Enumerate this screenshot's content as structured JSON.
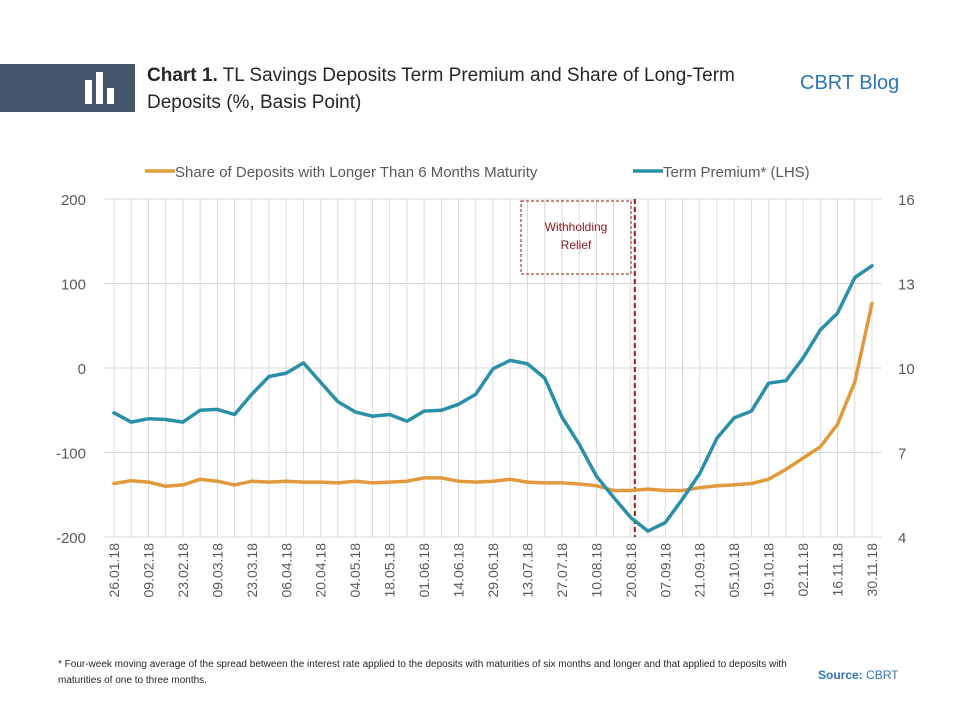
{
  "header": {
    "chart_number": "Chart 1.",
    "title": "TL Savings Deposits Term Premium and Share of Long-Term Deposits (%, Basis Point)",
    "brand": "CBRT Blog"
  },
  "footer": {
    "footnote": "* Four-week moving average of the spread between the interest rate applied to the deposits with maturities of six months and longer and that applied to deposits with maturities of one to three months.",
    "source_label": "Source:",
    "source_value": "CBRT"
  },
  "colors": {
    "share": "#e09a3c",
    "premium": "#2a8fa8",
    "marker": "#8b1a1a",
    "banner": "#44546a"
  },
  "chart_data": {
    "type": "line",
    "annotation": "Withholding Relief",
    "vline_x": "20.08.18",
    "yleft": {
      "ticks": [
        200,
        100,
        0,
        -100,
        -200
      ],
      "range": [
        -200,
        200
      ]
    },
    "yright": {
      "ticks": [
        16,
        13,
        10,
        7,
        4
      ],
      "range": [
        4,
        16
      ]
    },
    "x": [
      "26.01.18",
      "02.02.18",
      "09.02.18",
      "16.02.18",
      "23.02.18",
      "02.03.18",
      "09.03.18",
      "16.03.18",
      "23.03.18",
      "30.03.18",
      "06.04.18",
      "13.04.18",
      "20.04.18",
      "27.04.18",
      "04.05.18",
      "11.05.18",
      "18.05.18",
      "25.05.18",
      "01.06.18",
      "08.06.18",
      "14.06.18",
      "22.06.18",
      "29.06.18",
      "06.07.18",
      "13.07.18",
      "20.07.18",
      "27.07.18",
      "03.08.18",
      "10.08.18",
      "17.08.18",
      "20.08.18",
      "31.08.18",
      "07.09.18",
      "14.09.18",
      "21.09.18",
      "28.09.18",
      "05.10.18",
      "12.10.18",
      "19.10.18",
      "26.10.18",
      "02.11.18",
      "09.11.18",
      "16.11.18",
      "23.11.18",
      "30.11.18"
    ],
    "x_ticks": [
      "26.01.18",
      "09.02.18",
      "23.02.18",
      "09.03.18",
      "23.03.18",
      "06.04.18",
      "20.04.18",
      "04.05.18",
      "18.05.18",
      "01.06.18",
      "14.06.18",
      "29.06.18",
      "13.07.18",
      "27.07.18",
      "10.08.18",
      "20.08.18",
      "07.09.18",
      "21.09.18",
      "05.10.18",
      "19.10.18",
      "02.11.18",
      "16.11.18",
      "30.11.18"
    ],
    "series": [
      {
        "name": "Share of Deposits with Longer Than 6 Months Maturity",
        "axis": "right",
        "values": [
          5.9,
          6.0,
          5.95,
          5.8,
          5.85,
          6.05,
          5.98,
          5.85,
          5.98,
          5.95,
          5.98,
          5.95,
          5.95,
          5.92,
          5.98,
          5.92,
          5.95,
          5.98,
          6.1,
          6.1,
          5.98,
          5.95,
          5.98,
          6.05,
          5.95,
          5.92,
          5.92,
          5.88,
          5.82,
          5.65,
          5.65,
          5.7,
          5.65,
          5.65,
          5.75,
          5.82,
          5.85,
          5.9,
          6.05,
          6.4,
          6.8,
          7.2,
          8.0,
          9.5,
          12.3
        ]
      },
      {
        "name": "Term Premium* (LHS)",
        "axis": "left",
        "values": [
          -53,
          -64,
          -60,
          -61,
          -64,
          -50,
          -49,
          -55,
          -31,
          -10,
          -6,
          6,
          -17,
          -40,
          -52,
          -57,
          -55,
          -63,
          -51,
          -50,
          -43,
          -31,
          -1,
          9,
          5,
          -12,
          -58,
          -90,
          -128,
          -153,
          -177,
          -193,
          -183,
          -155,
          -125,
          -83,
          -59,
          -51,
          -18,
          -15,
          12,
          45,
          65,
          107,
          121
        ]
      }
    ]
  }
}
